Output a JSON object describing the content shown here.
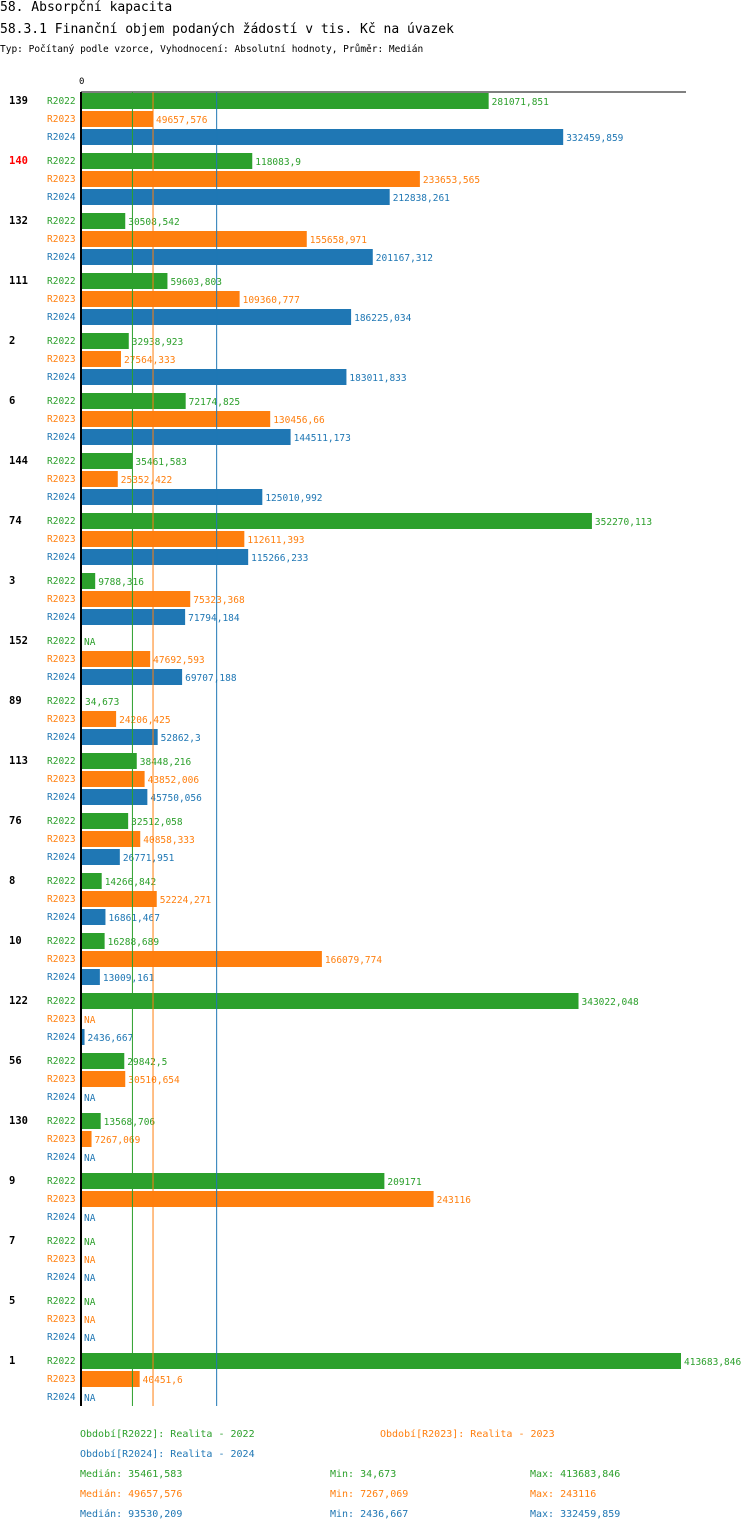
{
  "header": {
    "title": "58. Absorpční kapacita",
    "subtitle": "58.3.1 Finanční objem podaných žádostí v tis. Kč na úvazek",
    "meta": "Typ: Počítaný podle vzorce, Vyhodnocení: Absolutní hodnoty, Průměr: Medián"
  },
  "chart_data": {
    "type": "bar",
    "orientation": "horizontal",
    "title": "58.3.1 Finanční objem podaných žádostí v tis. Kč na úvazek",
    "xlim": [
      0,
      413683.846
    ],
    "axis_zero_label": "0",
    "highlight_category": "140",
    "categories": [
      "139",
      "140",
      "132",
      "111",
      "2",
      "6",
      "144",
      "74",
      "3",
      "152",
      "89",
      "113",
      "76",
      "8",
      "10",
      "122",
      "56",
      "130",
      "9",
      "7",
      "5",
      "1"
    ],
    "series": [
      {
        "name": "R2022",
        "color": "#2ca02c",
        "values": [
          281071.851,
          118083.9,
          30508.542,
          59603.803,
          32938.923,
          72174.825,
          35461.583,
          352270.113,
          9788.316,
          null,
          34.673,
          38448.216,
          32512.058,
          14266.842,
          16288.689,
          343022.048,
          29842.5,
          13568.706,
          209171,
          null,
          null,
          413683.846
        ],
        "labels": [
          "281071,851",
          "118083,9",
          "30508,542",
          "59603,803",
          "32938,923",
          "72174,825",
          "35461,583",
          "352270,113",
          "9788,316",
          "NA",
          "34,673",
          "38448,216",
          "32512,058",
          "14266,842",
          "16288,689",
          "343022,048",
          "29842,5",
          "13568,706",
          "209171",
          "NA",
          "NA",
          "413683,846"
        ]
      },
      {
        "name": "R2023",
        "color": "#ff7f0e",
        "values": [
          49657.576,
          233653.565,
          155658.971,
          109360.777,
          27564.333,
          130456.66,
          25352.422,
          112611.393,
          75323.368,
          47692.593,
          24206.425,
          43852.006,
          40858.333,
          52224.271,
          166079.774,
          null,
          30510.654,
          7267.069,
          243116,
          null,
          null,
          40451.6
        ],
        "labels": [
          "49657,576",
          "233653,565",
          "155658,971",
          "109360,777",
          "27564,333",
          "130456,66",
          "25352,422",
          "112611,393",
          "75323,368",
          "47692,593",
          "24206,425",
          "43852,006",
          "40858,333",
          "52224,271",
          "166079,774",
          "NA",
          "30510,654",
          "7267,069",
          "243116",
          "NA",
          "NA",
          "40451,6"
        ]
      },
      {
        "name": "R2024",
        "color": "#1f77b4",
        "values": [
          332459.859,
          212838.261,
          201167.312,
          186225.034,
          183011.833,
          144511.173,
          125010.992,
          115266.233,
          71794.184,
          69707.188,
          52862.3,
          45750.056,
          26771.951,
          16861.467,
          13009.161,
          2436.667,
          null,
          null,
          null,
          null,
          null,
          null
        ],
        "labels": [
          "332459,859",
          "212838,261",
          "201167,312",
          "186225,034",
          "183011,833",
          "144511,173",
          "125010,992",
          "115266,233",
          "71794,184",
          "69707,188",
          "52862,3",
          "45750,056",
          "26771,951",
          "16861,467",
          "13009,161",
          "2436,667",
          "NA",
          "NA",
          "NA",
          "NA",
          "NA",
          "NA"
        ]
      }
    ],
    "medians": [
      {
        "series": "R2022",
        "value": 35461.583
      },
      {
        "series": "R2023",
        "value": 49657.576
      },
      {
        "series": "R2024",
        "value": 93530.209
      }
    ],
    "legend": [
      {
        "text": "Období[R2022]: Realita - 2022",
        "color": "#2ca02c"
      },
      {
        "text": "Období[R2023]: Realita - 2023",
        "color": "#ff7f0e"
      },
      {
        "text": "Období[R2024]: Realita - 2024",
        "color": "#1f77b4"
      }
    ],
    "stats": [
      {
        "median": "Medián: 35461,583",
        "min": "Min: 34,673",
        "max": "Max: 413683,846",
        "color": "#2ca02c"
      },
      {
        "median": "Medián: 49657,576",
        "min": "Min: 7267,069",
        "max": "Max: 243116",
        "color": "#ff7f0e"
      },
      {
        "median": "Medián: 93530,209",
        "min": "Min: 2436,667",
        "max": "Max: 332459,859",
        "color": "#1f77b4"
      }
    ]
  }
}
